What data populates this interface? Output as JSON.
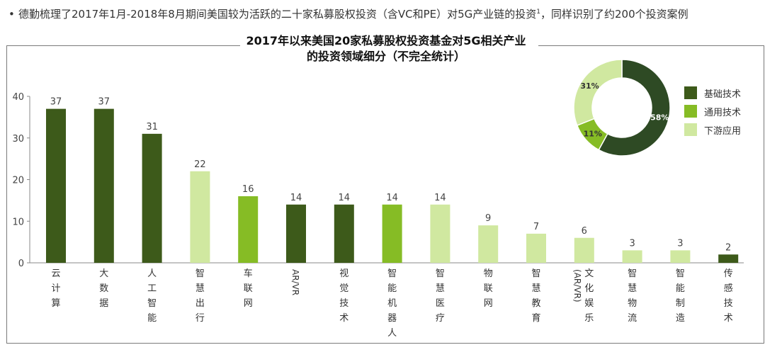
{
  "intro": {
    "bullet": "•",
    "text": "德勤梳理了2017年1月-2018年8月期间美国较为活跃的二十家私募股权投资（含VC和PE）对5G产业链的投资",
    "sup": "1",
    "text2": "，同样识别了约200个投资案例"
  },
  "colors": {
    "base": "#3d5a1a",
    "general": "#86bc25",
    "downstream": "#d0e8a0"
  },
  "chart_data": [
    {
      "type": "bar",
      "title_line1": "2017年以来美国20家私募股权投资基金对5G相关产业",
      "title_line2": "的投资领域细分（不完全统计）",
      "ylim": [
        0,
        40
      ],
      "yticks": [
        0,
        10,
        20,
        30,
        40
      ],
      "categories": [
        "云计算",
        "大数据",
        "人工智能",
        "智慧出行",
        "车联网",
        "AR/VR",
        "视觉技术",
        "智能机器人",
        "智慧医疗",
        "物联网",
        "智慧教育",
        "文化娱乐(AR/VR)",
        "智慧物流",
        "智能制造",
        "传感技术"
      ],
      "values": [
        37,
        37,
        31,
        22,
        16,
        14,
        14,
        14,
        14,
        9,
        7,
        6,
        3,
        3,
        2
      ],
      "groups": [
        "基础技术",
        "基础技术",
        "基础技术",
        "下游应用",
        "通用技术",
        "基础技术",
        "基础技术",
        "通用技术",
        "下游应用",
        "下游应用",
        "下游应用",
        "下游应用",
        "下游应用",
        "下游应用",
        "基础技术"
      ]
    },
    {
      "type": "pie",
      "labels": [
        "基础技术",
        "通用技术",
        "下游应用"
      ],
      "values": [
        58,
        11,
        31
      ],
      "value_labels": [
        "58%",
        "11%",
        "31%"
      ],
      "colors": [
        "#2e4a24",
        "#86bc25",
        "#d0e8a0"
      ]
    }
  ],
  "legend": [
    {
      "label": "基础技术",
      "color": "#3d5a1a"
    },
    {
      "label": "通用技术",
      "color": "#86bc25"
    },
    {
      "label": "下游应用",
      "color": "#d0e8a0"
    }
  ]
}
